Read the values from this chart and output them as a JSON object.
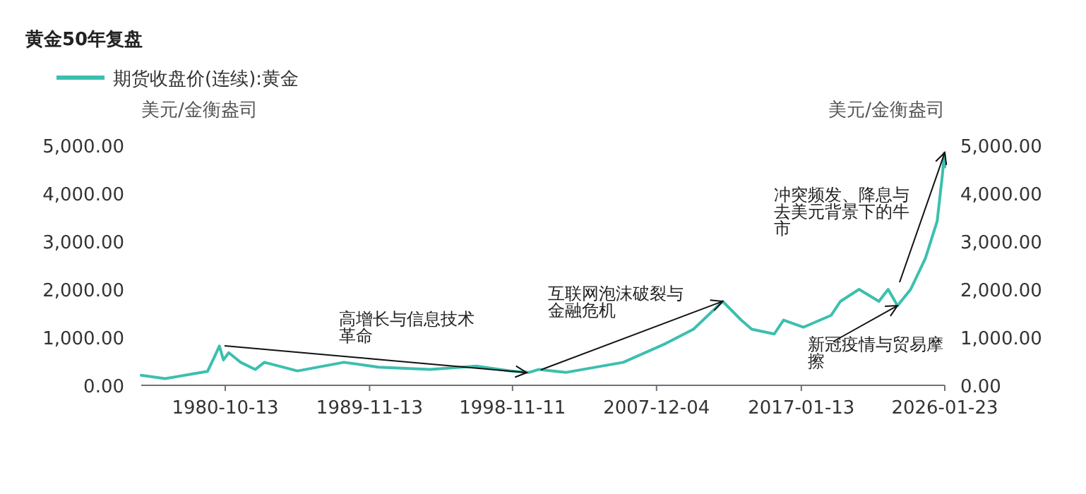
{
  "chart_data": {
    "type": "line",
    "title": "黄金50年复盘",
    "ylabel": "美元/金衡盎司",
    "y2label": "美元/金衡盎司",
    "legend": "top left",
    "grid": false,
    "x": [
      "1975-07",
      "1977-01",
      "1979-09",
      "1980-02",
      "1980-06",
      "1980-09",
      "1981-01",
      "1981-10",
      "1982-09",
      "1983-04",
      "1985-05",
      "1988-04",
      "1990-06",
      "1993-09",
      "1996-08",
      "1998-09",
      "1999-12",
      "2000-07",
      "2002-04",
      "2005-11",
      "2008-07",
      "2010-04",
      "2012-02",
      "2013-04",
      "2013-12",
      "2015-05",
      "2015-12",
      "2017-03",
      "2018-12",
      "2019-07",
      "2020-09",
      "2021-12",
      "2022-07",
      "2023-02",
      "2023-12",
      "2024-11",
      "2025-08",
      "2025-10",
      "2025-12",
      "2026-01-10",
      "2026-01-23"
    ],
    "series": [
      {
        "name": "期货收盘价(连续):黄金",
        "color": "#3cbfae",
        "values": [
          210,
          140,
          290,
          580,
          820,
          530,
          680,
          480,
          330,
          480,
          300,
          480,
          380,
          330,
          400,
          300,
          270,
          330,
          270,
          480,
          870,
          1170,
          1750,
          1360,
          1170,
          1070,
          1360,
          1210,
          1460,
          1750,
          2000,
          1750,
          2000,
          1660,
          2000,
          2640,
          3420,
          3910,
          4400,
          4840,
          4550
        ]
      }
    ],
    "xlim": [
      "1975-07",
      "2026-01-23"
    ],
    "xticks": [
      "1980-10-13",
      "1989-11-13",
      "1998-11-11",
      "2007-12-04",
      "2017-01-13",
      "2026-01-23"
    ],
    "ylim": [
      0,
      5000
    ],
    "yticks": [
      {
        "value": 0,
        "label": "0.00"
      },
      {
        "value": 1000,
        "label": "1,000.00"
      },
      {
        "value": 2000,
        "label": "2,000.00"
      },
      {
        "value": 3000,
        "label": "3,000.00"
      },
      {
        "value": 4000,
        "label": "4,000.00"
      },
      {
        "value": 5000,
        "label": "5,000.00"
      }
    ],
    "y2lim": [
      0,
      5000
    ],
    "y2ticks": [
      {
        "value": 0,
        "label": "0.00"
      },
      {
        "value": 1000,
        "label": "1,000.00"
      },
      {
        "value": 2000,
        "label": "2,000.00"
      },
      {
        "value": 3000,
        "label": "3,000.00"
      },
      {
        "value": 4000,
        "label": "4,000.00"
      },
      {
        "value": 5000,
        "label": "5,000.00"
      }
    ],
    "annotations": [
      "高增长与信息技术革命",
      {
        "text": "互联网泡沫破裂与金融危机",
        "x": "2012-02",
        "y": 1750
      },
      {
        "text": "新冠疫情与贸易摩擦",
        "x": "2023-02",
        "y": 1660
      },
      {
        "text": "冲突频发、降息与去美元背景下的牛市",
        "x": "2026-01-23",
        "y": 4850
      }
    ]
  }
}
